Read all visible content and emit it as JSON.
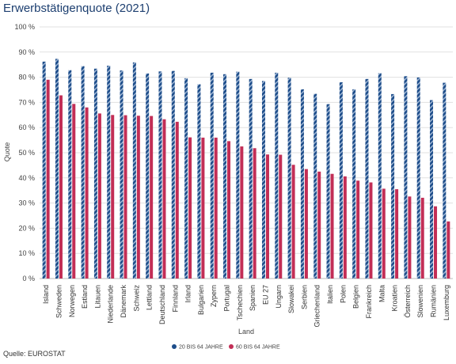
{
  "source_note": "Quelle: EUROSTAT",
  "colors": {
    "series1": "#1d4d8a",
    "series1_stripe": "#9fb6d4",
    "series2": "#c22e56",
    "grid": "#e1e1e1",
    "axis": "#bbbbbb"
  },
  "chart_data": {
    "type": "bar",
    "title": "Erwerbstätigenquote (2021)",
    "xlabel": "Land",
    "ylabel": "Quote",
    "ylim": [
      0,
      100
    ],
    "yticks": [
      "0 %",
      "10 %",
      "20 %",
      "30 %",
      "40 %",
      "50 %",
      "60 %",
      "70 %",
      "80 %",
      "90 %",
      "100 %"
    ],
    "grid": true,
    "legend_position": "bottom",
    "categories": [
      "Island",
      "Schweden",
      "Norwegen",
      "Estland",
      "Litauen",
      "Niederlande",
      "Dänemark",
      "Schweiz",
      "Lettland",
      "Deutschland",
      "Finnland",
      "Irland",
      "Bulgarien",
      "Zypern",
      "Portugal",
      "Tschechien",
      "Spanien",
      "EU 27",
      "Ungarn",
      "Slowakei",
      "Serbien",
      "Griechenland",
      "Italien",
      "Polen",
      "Belgien",
      "Frankreich",
      "Malta",
      "Kroatien",
      "Österreich",
      "Slowenien",
      "Rumänien",
      "Luxemburg"
    ],
    "series": [
      {
        "name": "20 BIS 64 JAHRE",
        "values": [
          86.2,
          87.3,
          82.8,
          84.4,
          83.4,
          84.6,
          82.7,
          85.9,
          81.5,
          82.3,
          82.5,
          79.6,
          77.2,
          81.8,
          81.2,
          82.2,
          79.3,
          78.5,
          81.8,
          79.8,
          75.2,
          73.4,
          69.3,
          78.0,
          75.2,
          79.3,
          81.6,
          73.3,
          80.4,
          79.9,
          70.9,
          77.8
        ]
      },
      {
        "name": "60 BIS 64 JAHRE",
        "values": [
          79.0,
          72.8,
          69.4,
          68.0,
          65.6,
          65.0,
          64.9,
          64.7,
          64.6,
          63.3,
          62.3,
          56.1,
          56.0,
          56.0,
          54.6,
          52.5,
          51.8,
          49.3,
          49.2,
          45.2,
          43.5,
          42.5,
          41.6,
          40.6,
          38.9,
          38.2,
          35.7,
          35.5,
          32.6,
          32.1,
          28.7,
          22.7
        ]
      }
    ]
  }
}
